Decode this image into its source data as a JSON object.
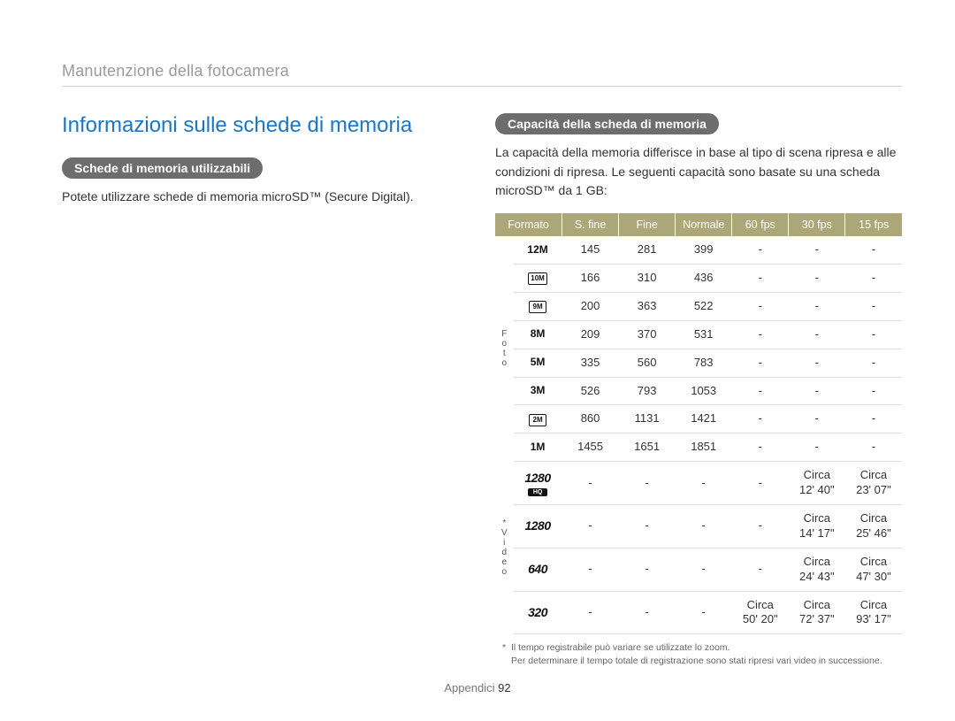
{
  "breadcrumb": "Manutenzione della fotocamera",
  "main_title": "Informazioni sulle schede di memoria",
  "left": {
    "pill": "Schede di memoria utilizzabili",
    "text": "Potete utilizzare schede di memoria microSD™ (Secure Digital)."
  },
  "right": {
    "pill": "Capacità della scheda di memoria",
    "intro": "La capacità della memoria differisce in base al tipo di scena ripresa e alle condizioni di ripresa. Le seguenti capacità sono basate su una scheda microSD™ da 1 GB:"
  },
  "table": {
    "headers": [
      "Formato",
      "S. fine",
      "Fine",
      "Normale",
      "60 fps",
      "30 fps",
      "15 fps"
    ],
    "section_labels": {
      "foto": "F\no\nt\no",
      "video": "*\nV\ni\nd\ne\no"
    },
    "foto_rows": [
      {
        "fmt": "12M",
        "style": "bold",
        "sfine": "145",
        "fine": "281",
        "norm": "399",
        "f60": "-",
        "f30": "-",
        "f15": "-"
      },
      {
        "fmt": "10M",
        "style": "box",
        "sfine": "166",
        "fine": "310",
        "norm": "436",
        "f60": "-",
        "f30": "-",
        "f15": "-"
      },
      {
        "fmt": "9M",
        "style": "box",
        "sfine": "200",
        "fine": "363",
        "norm": "522",
        "f60": "-",
        "f30": "-",
        "f15": "-"
      },
      {
        "fmt": "8M",
        "style": "bold",
        "sfine": "209",
        "fine": "370",
        "norm": "531",
        "f60": "-",
        "f30": "-",
        "f15": "-"
      },
      {
        "fmt": "5M",
        "style": "bold",
        "sfine": "335",
        "fine": "560",
        "norm": "783",
        "f60": "-",
        "f30": "-",
        "f15": "-"
      },
      {
        "fmt": "3M",
        "style": "bold",
        "sfine": "526",
        "fine": "793",
        "norm": "1053",
        "f60": "-",
        "f30": "-",
        "f15": "-"
      },
      {
        "fmt": "2M",
        "style": "box",
        "sfine": "860",
        "fine": "1131",
        "norm": "1421",
        "f60": "-",
        "f30": "-",
        "f15": "-"
      },
      {
        "fmt": "1M",
        "style": "bold",
        "sfine": "1455",
        "fine": "1651",
        "norm": "1851",
        "f60": "-",
        "f30": "-",
        "f15": "-"
      }
    ],
    "video_rows": [
      {
        "fmt": "1280",
        "hq": true,
        "sfine": "-",
        "fine": "-",
        "norm": "-",
        "f60": "-",
        "f30": "Circa\n12' 40\"",
        "f15": "Circa\n23' 07\""
      },
      {
        "fmt": "1280",
        "hq": false,
        "sfine": "-",
        "fine": "-",
        "norm": "-",
        "f60": "-",
        "f30": "Circa\n14' 17\"",
        "f15": "Circa\n25' 46\""
      },
      {
        "fmt": "640",
        "hq": false,
        "sfine": "-",
        "fine": "-",
        "norm": "-",
        "f60": "-",
        "f30": "Circa\n24' 43\"",
        "f15": "Circa\n47' 30\""
      },
      {
        "fmt": "320",
        "hq": false,
        "sfine": "-",
        "fine": "-",
        "norm": "-",
        "f60": "Circa\n50' 20\"",
        "f30": "Circa\n72' 37\"",
        "f15": "Circa\n93' 17\""
      }
    ]
  },
  "footnotes": {
    "line1": "Il tempo registrabile può variare se utilizzate lo zoom.",
    "line2": "Per determinare il tempo totale di registrazione sono stati ripresi vari video in successione."
  },
  "footer": {
    "section": "Appendici",
    "page": "92"
  },
  "colors": {
    "title": "#1a76c6",
    "pill_bg": "#6d6d6d",
    "th_bg": "#aba778",
    "border": "#dcdcdc",
    "breadcrumb": "#9a9a9a"
  }
}
